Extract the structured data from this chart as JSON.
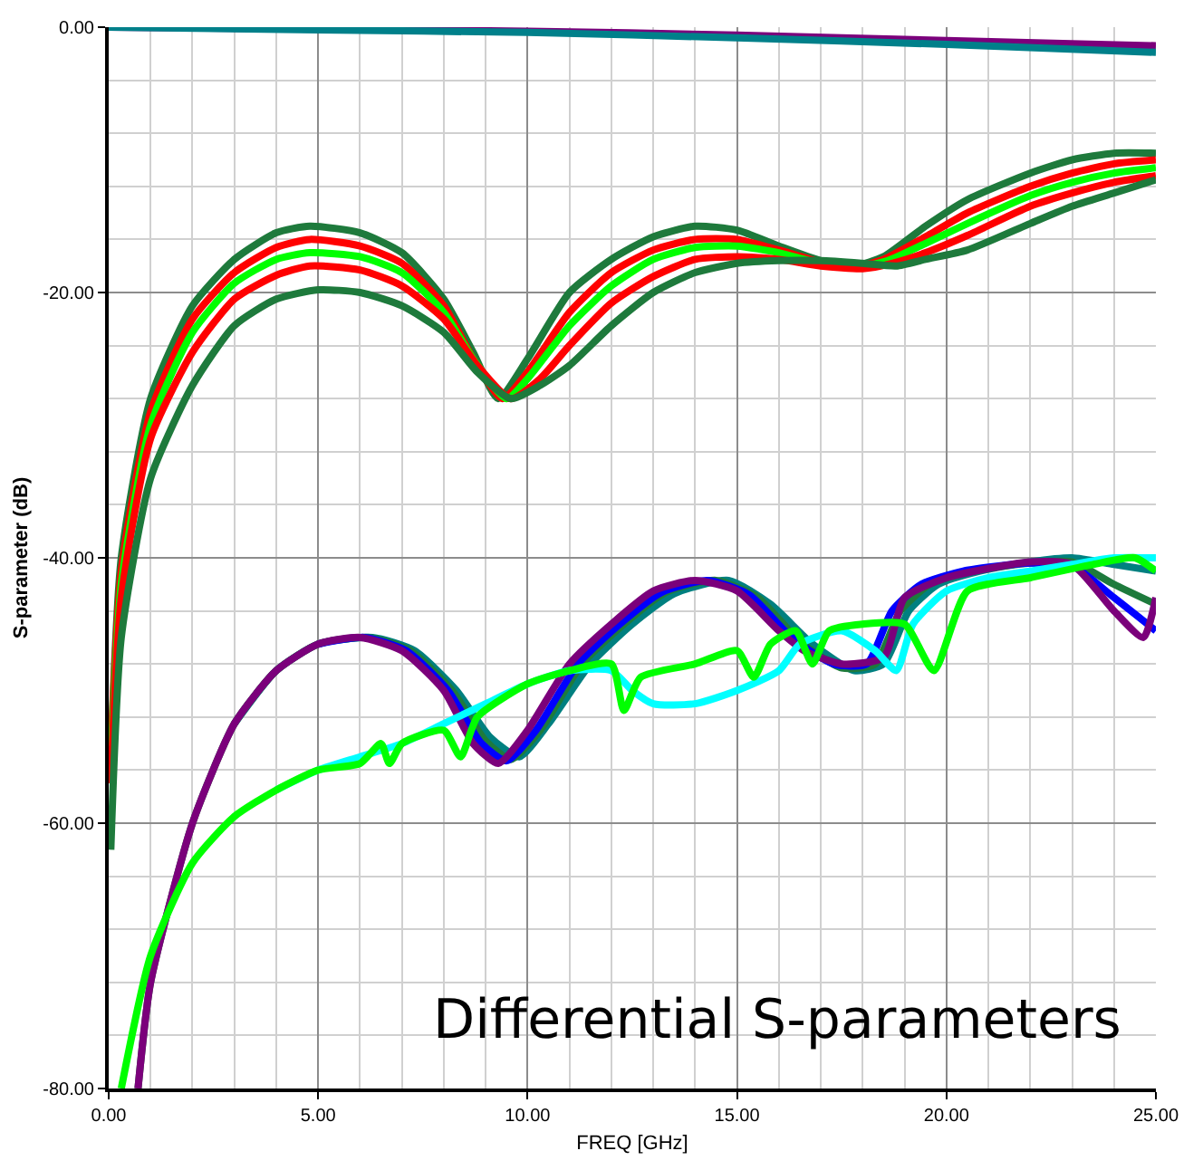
{
  "chart_data": {
    "type": "line",
    "xlabel": "FREQ [GHz]",
    "ylabel": "S-parameter (dB)",
    "annotations": [
      "Differential S-parameters"
    ],
    "xlim": [
      0,
      25
    ],
    "ylim": [
      -80,
      0
    ],
    "xticks": [
      {
        "value": 0,
        "label": "0.00"
      },
      {
        "value": 1,
        "label": null
      },
      {
        "value": 2,
        "label": null
      },
      {
        "value": 3,
        "label": null
      },
      {
        "value": 4,
        "label": null
      },
      {
        "value": 5,
        "label": "5.00"
      },
      {
        "value": 6,
        "label": null
      },
      {
        "value": 7,
        "label": null
      },
      {
        "value": 8,
        "label": null
      },
      {
        "value": 9,
        "label": null
      },
      {
        "value": 10,
        "label": "10.00"
      },
      {
        "value": 11,
        "label": null
      },
      {
        "value": 12,
        "label": null
      },
      {
        "value": 13,
        "label": null
      },
      {
        "value": 14,
        "label": null
      },
      {
        "value": 15,
        "label": "15.00"
      },
      {
        "value": 16,
        "label": null
      },
      {
        "value": 17,
        "label": null
      },
      {
        "value": 18,
        "label": null
      },
      {
        "value": 19,
        "label": null
      },
      {
        "value": 20,
        "label": "20.00"
      },
      {
        "value": 21,
        "label": null
      },
      {
        "value": 22,
        "label": null
      },
      {
        "value": 23,
        "label": null
      },
      {
        "value": 24,
        "label": null
      },
      {
        "value": 25,
        "label": "25.00"
      }
    ],
    "yticks": [
      {
        "value": -80,
        "label": "-80.00"
      },
      {
        "value": -76,
        "label": null
      },
      {
        "value": -72,
        "label": null
      },
      {
        "value": -68,
        "label": null
      },
      {
        "value": -64,
        "label": null
      },
      {
        "value": -60,
        "label": "-60.00"
      },
      {
        "value": -56,
        "label": null
      },
      {
        "value": -52,
        "label": null
      },
      {
        "value": -48,
        "label": null
      },
      {
        "value": -44,
        "label": null
      },
      {
        "value": -40,
        "label": "-40.00"
      },
      {
        "value": -36,
        "label": null
      },
      {
        "value": -32,
        "label": null
      },
      {
        "value": -28,
        "label": null
      },
      {
        "value": -24,
        "label": null
      },
      {
        "value": -20,
        "label": "-20.00"
      },
      {
        "value": -16,
        "label": null
      },
      {
        "value": -12,
        "label": null
      },
      {
        "value": -8,
        "label": null
      },
      {
        "value": -4,
        "label": null
      },
      {
        "value": 0,
        "label": "0.00"
      }
    ],
    "grid": true,
    "marker": "none",
    "line_style": "solid",
    "series": [
      {
        "color": "#7b007b",
        "x": [
          0,
          10,
          15,
          20,
          25
        ],
        "values": [
          0,
          -0.3,
          -0.6,
          -1,
          -1.4
        ]
      },
      {
        "color": "#00808a",
        "x": [
          0,
          5,
          10,
          15,
          20,
          25
        ],
        "values": [
          0,
          -0.2,
          -0.4,
          -0.8,
          -1.3,
          -1.9
        ]
      },
      {
        "color": "#1e7a3c",
        "x": [
          0.05,
          0.3,
          1,
          2,
          3,
          4,
          4.8,
          6,
          7,
          8,
          8.7,
          9.3,
          10,
          11,
          12,
          13,
          14,
          15,
          16,
          17,
          17.8,
          18.5,
          19.5,
          20.5,
          22,
          23,
          24,
          25
        ],
        "values": [
          -55,
          -40,
          -28,
          -21,
          -17.5,
          -15.5,
          -15,
          -15.5,
          -17,
          -20.5,
          -24.5,
          -28,
          -25,
          -20,
          -17.5,
          -15.8,
          -15,
          -15.3,
          -16.5,
          -17.6,
          -18,
          -17.3,
          -15,
          -13,
          -11,
          -10,
          -9.5,
          -9.5
        ]
      },
      {
        "color": "#ff0000",
        "x": [
          0.05,
          0.3,
          1,
          2,
          3,
          4,
          4.8,
          6,
          7,
          8,
          8.7,
          9.4,
          10,
          11,
          12,
          13,
          14,
          15,
          16,
          17,
          17.9,
          18.5,
          19.5,
          20.5,
          22,
          23,
          24,
          25
        ],
        "values": [
          -55,
          -41,
          -29,
          -22,
          -18.5,
          -16.6,
          -16,
          -16.5,
          -17.8,
          -21,
          -25,
          -28,
          -26,
          -21.5,
          -18.5,
          -16.8,
          -16,
          -16,
          -16.8,
          -17.7,
          -18,
          -17.5,
          -15.8,
          -14,
          -12,
          -11,
          -10.3,
          -10
        ]
      },
      {
        "color": "#00ff00",
        "x": [
          0.05,
          0.3,
          1,
          2,
          3,
          4,
          4.8,
          6,
          7,
          8,
          8.7,
          9.5,
          10,
          11,
          12,
          13,
          14,
          15,
          16,
          17,
          18,
          18.6,
          19.5,
          20.5,
          22,
          23,
          24,
          25
        ],
        "values": [
          -56,
          -42,
          -30,
          -23,
          -19.3,
          -17.5,
          -17,
          -17.3,
          -18.5,
          -21.5,
          -25,
          -28,
          -26.5,
          -22.5,
          -19.5,
          -17.5,
          -16.6,
          -16.5,
          -17,
          -17.8,
          -18,
          -17.6,
          -16.3,
          -14.8,
          -12.7,
          -11.7,
          -11,
          -10.6
        ]
      },
      {
        "color": "#ff0000",
        "x": [
          0.05,
          0.3,
          1,
          2,
          3,
          4,
          4.8,
          6,
          7,
          8,
          8.8,
          9.6,
          10.3,
          11,
          12,
          13,
          14,
          15,
          16,
          17,
          18,
          18.7,
          19.5,
          20.5,
          22,
          23,
          24,
          25
        ],
        "values": [
          -57,
          -43,
          -31,
          -24.5,
          -20.5,
          -18.7,
          -18,
          -18.3,
          -19.5,
          -22,
          -25.5,
          -28,
          -26.5,
          -24,
          -20.8,
          -18.8,
          -17.5,
          -17.3,
          -17.5,
          -18,
          -18.2,
          -17.8,
          -17,
          -15.7,
          -13.5,
          -12.5,
          -11.7,
          -11.2
        ]
      },
      {
        "color": "#1e7a3c",
        "x": [
          0.05,
          0.3,
          1,
          2,
          3,
          4,
          5,
          6,
          7,
          8,
          8.8,
          9.6,
          10.3,
          11,
          12,
          13,
          14,
          15,
          16,
          17,
          18,
          18.8,
          19.5,
          20.5,
          22,
          23,
          24,
          25
        ],
        "values": [
          -62,
          -46,
          -34,
          -27,
          -22.5,
          -20.5,
          -19.8,
          -20,
          -21,
          -23,
          -26,
          -28,
          -27,
          -25.5,
          -22.5,
          -20,
          -18.5,
          -17.8,
          -17.6,
          -17.6,
          -17.8,
          -18,
          -17.5,
          -16.8,
          -14.8,
          -13.5,
          -12.5,
          -11.5
        ]
      },
      {
        "color": "#008080",
        "x": [
          3,
          4,
          5,
          6.3,
          7.3,
          8.3,
          9.1,
          9.8,
          10.5,
          11.5,
          12.5,
          13.5,
          14.8,
          15.8,
          16.8,
          17.8,
          18.5,
          19.1,
          19.8,
          20.8,
          22,
          23,
          24,
          25
        ],
        "values": [
          -52.5,
          -48.5,
          -46.5,
          -46,
          -47,
          -50,
          -53.5,
          -55,
          -52.5,
          -48,
          -45,
          -42.7,
          -41.7,
          -43.5,
          -46.5,
          -48.5,
          -48,
          -44,
          -42,
          -41,
          -40.3,
          -40,
          -40.5,
          -41
        ]
      },
      {
        "color": "#1e7a3c",
        "x": [
          0.7,
          1,
          2,
          3,
          4,
          5,
          6.2,
          7.2,
          8.2,
          9,
          9.6,
          10.3,
          11.3,
          12.3,
          13.3,
          14.5,
          15.5,
          16.5,
          17.5,
          18.3,
          18.9,
          19.6,
          20.6,
          22,
          23,
          24,
          25
        ],
        "values": [
          -80,
          -72,
          -60,
          -52.5,
          -48.5,
          -46.5,
          -46,
          -47,
          -50,
          -53.8,
          -55.2,
          -53,
          -48,
          -45,
          -42.6,
          -41.7,
          -43,
          -46.3,
          -48.3,
          -48,
          -44,
          -42,
          -41,
          -40.4,
          -40.3,
          -42,
          -43.5
        ]
      },
      {
        "color": "#0000ff",
        "x": [
          5,
          6.1,
          7.1,
          8.1,
          8.9,
          9.5,
          10.2,
          11.2,
          12.2,
          13.2,
          14.3,
          15.3,
          16.3,
          17.3,
          18.1,
          18.7,
          19.4,
          20.4,
          22,
          23,
          24,
          25
        ],
        "values": [
          -46.5,
          -46,
          -47,
          -50,
          -54,
          -55.3,
          -53,
          -48,
          -45,
          -42.6,
          -41.7,
          -42.8,
          -46,
          -48,
          -48,
          -44,
          -42,
          -41,
          -40.4,
          -40.6,
          -43,
          -45.5
        ]
      },
      {
        "color": "#7b007b",
        "x": [
          0.7,
          1,
          2,
          3,
          4,
          5,
          6,
          7,
          8,
          8.7,
          9.3,
          10,
          11,
          12,
          13,
          14,
          15,
          16,
          16.6,
          17.5,
          18.5,
          19,
          20,
          21,
          22,
          23,
          24,
          24.7,
          25
        ],
        "values": [
          -80,
          -72,
          -60,
          -52.5,
          -48.5,
          -46.5,
          -46,
          -47,
          -50,
          -54,
          -55.5,
          -53,
          -48,
          -45,
          -42.5,
          -41.7,
          -42.5,
          -45.5,
          -47,
          -48,
          -47.5,
          -43,
          -41.5,
          -40.8,
          -40.3,
          -40.5,
          -44,
          -46,
          -43
        ]
      },
      {
        "color": "#00ffff",
        "x": [
          4,
          5,
          6,
          7,
          8,
          9,
          10,
          11,
          12,
          12.5,
          13,
          14,
          15,
          16,
          16.5,
          17.5,
          18.3,
          18.8,
          19.2,
          20,
          21,
          22,
          23,
          24,
          25
        ],
        "values": [
          -57.5,
          -56,
          -55,
          -54,
          -52.5,
          -51,
          -49.5,
          -48.5,
          -48.5,
          -50,
          -51,
          -51,
          -50,
          -48.5,
          -46.5,
          -45.5,
          -47,
          -48.5,
          -45,
          -42.5,
          -41.5,
          -41,
          -40.5,
          -40,
          -40
        ]
      },
      {
        "color": "#00ff00",
        "x": [
          0.3,
          1,
          2,
          3,
          4,
          5,
          6,
          6.5,
          6.7,
          7,
          8,
          8.4,
          8.8,
          10,
          11,
          12,
          12.3,
          12.7,
          14,
          15,
          15.4,
          15.8,
          16.4,
          16.8,
          17.2,
          18,
          19,
          19.7,
          20.5,
          22,
          23.5,
          24.5,
          25
        ],
        "values": [
          -80,
          -70,
          -63,
          -59.5,
          -57.5,
          -56,
          -55.5,
          -54,
          -55.5,
          -54,
          -53,
          -55,
          -52,
          -49.5,
          -48.5,
          -48,
          -51.5,
          -49,
          -48,
          -47,
          -49,
          -46.5,
          -45.5,
          -48,
          -45.5,
          -45,
          -45,
          -48.5,
          -42.5,
          -41.5,
          -40.5,
          -40,
          -41
        ]
      }
    ]
  }
}
